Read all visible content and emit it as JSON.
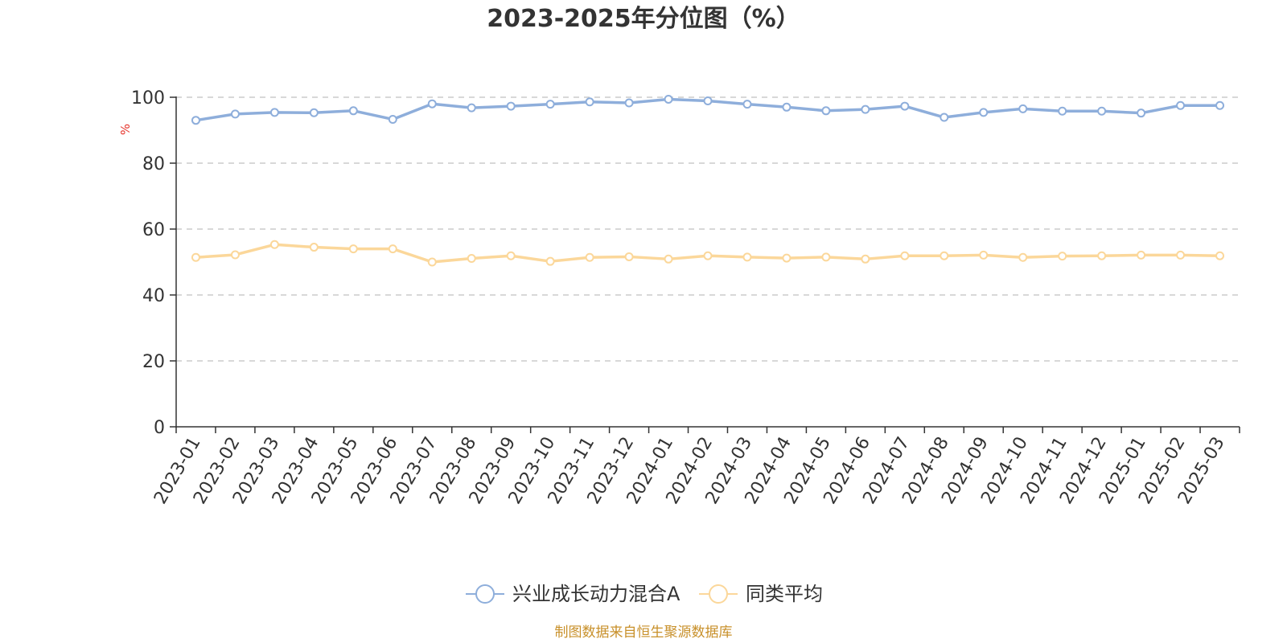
{
  "colors": {
    "series1": "#8eaedb",
    "series2": "#fbd79a",
    "axis": "#333333",
    "grid": "#cccccc",
    "ylabel": "#e6332a",
    "source": "#c8902a"
  },
  "footer": {
    "source": "制图数据来自恒生聚源数据库"
  },
  "chart_data": {
    "type": "line",
    "title": "2023-2025年分位图（%）",
    "xlabel": "",
    "ylabel": "%",
    "ylim": [
      0,
      100
    ],
    "yticks": [
      0,
      20,
      40,
      60,
      80,
      100
    ],
    "grid": "horizontal-dashed",
    "legend_position": "bottom-center",
    "categories": [
      "2023-01",
      "2023-02",
      "2023-03",
      "2023-04",
      "2023-05",
      "2023-06",
      "2023-07",
      "2023-08",
      "2023-09",
      "2023-10",
      "2023-11",
      "2023-12",
      "2024-01",
      "2024-02",
      "2024-03",
      "2024-04",
      "2024-05",
      "2024-06",
      "2024-07",
      "2024-08",
      "2024-09",
      "2024-10",
      "2024-11",
      "2024-12",
      "2025-01",
      "2025-02",
      "2025-03"
    ],
    "series": [
      {
        "name": "兴业成长动力混合A",
        "color": "#8eaedb",
        "values": [
          93.0,
          94.9,
          95.4,
          95.3,
          95.9,
          93.3,
          98.0,
          96.8,
          97.3,
          97.9,
          98.6,
          98.3,
          99.4,
          98.9,
          97.9,
          97.0,
          95.9,
          96.3,
          97.3,
          93.9,
          95.4,
          96.5,
          95.8,
          95.8,
          95.2,
          97.5,
          97.5
        ]
      },
      {
        "name": "同类平均",
        "color": "#fbd79a",
        "values": [
          51.4,
          52.2,
          55.3,
          54.5,
          54.0,
          54.0,
          50.0,
          51.1,
          51.9,
          50.2,
          51.4,
          51.6,
          50.9,
          51.9,
          51.5,
          51.2,
          51.5,
          50.9,
          51.9,
          51.9,
          52.1,
          51.4,
          51.8,
          51.9,
          52.1,
          52.1,
          51.9
        ]
      }
    ]
  }
}
